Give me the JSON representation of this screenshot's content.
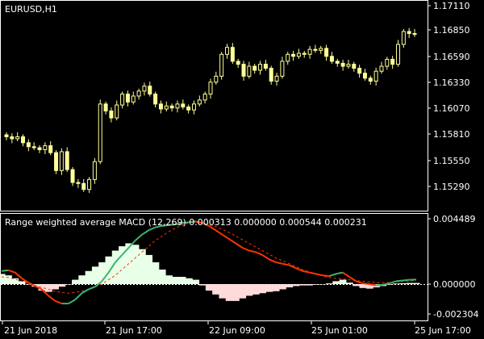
{
  "window": {
    "title": "EURUSD,H1"
  },
  "indicator": {
    "caption": "Range weighted average MACD (12,269) 0.000313 0.000000 0.000544 0.000231"
  },
  "colors": {
    "background": "#000000",
    "frame": "#ffffff",
    "candle": "#ffff99",
    "fast_line": "#ff3300",
    "fast_line_up": "#3cb371",
    "signal_line": "#ff3300",
    "hist_pos": "#e8ffe8",
    "hist_neg": "#ffdada",
    "zero_line": "#ffffff"
  },
  "chart_data": [
    {
      "type": "candlestick",
      "name": "price",
      "y_axis_ticks": [
        "1.17110",
        "1.16850",
        "1.16590",
        "1.16330",
        "1.16070",
        "1.15810",
        "1.15550",
        "1.15290"
      ],
      "ylim": [
        1.1516,
        1.1711
      ],
      "approx_close_path": [
        1.1579,
        1.1577,
        1.1579,
        1.1573,
        1.1569,
        1.1568,
        1.1566,
        1.157,
        1.1563,
        1.1545,
        1.1564,
        1.1546,
        1.1533,
        1.1532,
        1.1526,
        1.1536,
        1.1554,
        1.1612,
        1.1605,
        1.1598,
        1.1611,
        1.1622,
        1.1614,
        1.162,
        1.1625,
        1.163,
        1.1622,
        1.1612,
        1.1607,
        1.161,
        1.1608,
        1.1612,
        1.1609,
        1.1606,
        1.1612,
        1.1616,
        1.1622,
        1.1634,
        1.164,
        1.1662,
        1.1669,
        1.1655,
        1.1652,
        1.164,
        1.165,
        1.1646,
        1.1652,
        1.1648,
        1.1635,
        1.164,
        1.1655,
        1.1662,
        1.166,
        1.1663,
        1.1662,
        1.1667,
        1.1666,
        1.1668,
        1.166,
        1.1655,
        1.1653,
        1.165,
        1.1652,
        1.1648,
        1.1643,
        1.1638,
        1.1635,
        1.1645,
        1.165,
        1.1657,
        1.1652,
        1.1672,
        1.1685,
        1.1683,
        1.1682
      ]
    },
    {
      "type": "line",
      "name": "indicator",
      "y_axis_ticks": [
        "0.004489",
        "0.000000",
        "-0.002304"
      ],
      "ylim": [
        -0.002304,
        0.004489
      ],
      "x_axis_ticks": [
        "21 Jun 2018",
        "21 Jun 17:00",
        "22 Jun 09:00",
        "25 Jun 01:00",
        "25 Jun 17:00"
      ],
      "fast_line": [
        0.0009,
        0.00095,
        0.0008,
        0.0004,
        0.0001,
        -0.00015,
        -0.0004,
        -0.0009,
        -0.0013,
        -0.0015,
        -0.0015,
        -0.0012,
        -0.0007,
        -0.0004,
        -0.0002,
        0.0002,
        0.0008,
        0.0015,
        0.002,
        0.0025,
        0.003,
        0.0034,
        0.0037,
        0.0039,
        0.004,
        0.00405,
        0.0041,
        0.0042,
        0.00425,
        0.0043,
        0.0042,
        0.004,
        0.0037,
        0.0034,
        0.0031,
        0.0028,
        0.0025,
        0.0023,
        0.0022,
        0.002,
        0.0017,
        0.0015,
        0.0014,
        0.0013,
        0.0011,
        0.0009,
        0.0008,
        0.0007,
        0.0006,
        0.00055,
        0.0007,
        0.0008,
        0.0005,
        0.0002,
        5e-05,
        0.0,
        -0.0001,
        -5e-05,
        5e-05,
        0.0002,
        0.00025,
        0.0003,
        0.00031
      ],
      "signal_line": [
        0.0005,
        0.00045,
        0.00035,
        0.0002,
        5e-05,
        -0.0001,
        -0.00025,
        -0.0004,
        -0.00055,
        -0.00065,
        -0.0007,
        -0.00065,
        -0.00055,
        -0.0004,
        -0.0002,
        0.0,
        0.0003,
        0.0006,
        0.001,
        0.0014,
        0.0018,
        0.0022,
        0.0026,
        0.003,
        0.0033,
        0.0036,
        0.00385,
        0.00405,
        0.0042,
        0.00425,
        0.0042,
        0.0041,
        0.00395,
        0.00375,
        0.00355,
        0.0033,
        0.00305,
        0.0028,
        0.00255,
        0.0023,
        0.00205,
        0.0018,
        0.0016,
        0.0014,
        0.0012,
        0.001,
        0.00085,
        0.0007,
        0.00055,
        0.00045,
        0.0004,
        0.00035,
        0.0003,
        0.00025,
        0.0002,
        0.00015,
        0.0001,
        0.0001,
        0.00012,
        0.00016,
        0.00019,
        0.00022,
        0.00023
      ],
      "histogram": [
        0.0007,
        0.0006,
        0.0004,
        0.0002,
        0.0,
        -0.0002,
        -0.0005,
        -0.0006,
        -0.0004,
        -0.0002,
        0.0,
        0.0003,
        0.0006,
        0.0009,
        0.0012,
        0.0015,
        0.0019,
        0.0023,
        0.0026,
        0.0028,
        0.0027,
        0.0024,
        0.002,
        0.0015,
        0.001,
        0.0006,
        0.0005,
        0.0005,
        0.0004,
        0.0003,
        -0.0001,
        -0.0005,
        -0.0008,
        -0.0011,
        -0.0013,
        -0.0013,
        -0.0011,
        -0.0009,
        -0.0008,
        -0.0007,
        -0.0006,
        -0.00055,
        -0.0004,
        -0.00025,
        -0.00015,
        -0.0001,
        -0.0001,
        -5e-05,
        0.0,
        5e-05,
        0.0002,
        0.0003,
        0.0001,
        -0.00015,
        -0.0003,
        -0.00035,
        -0.00025,
        -0.00015,
        -5e-05,
        4e-05,
        6e-05,
        8e-05,
        8e-05
      ]
    }
  ]
}
